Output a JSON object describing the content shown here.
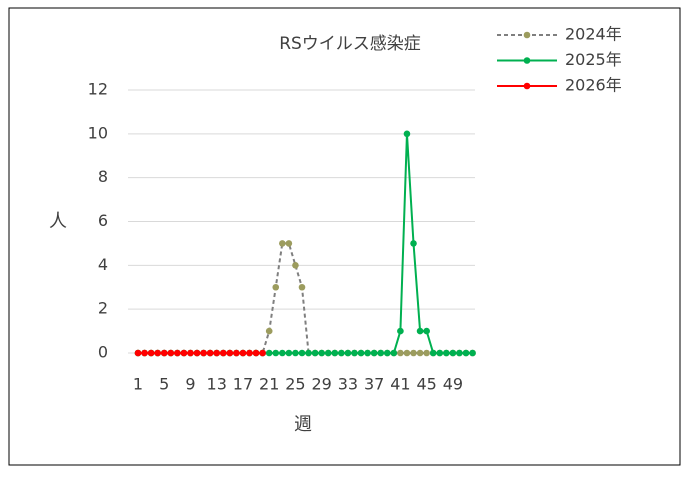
{
  "chart_data": {
    "type": "line",
    "title": "RSウイルス感染症",
    "x_label": "週",
    "y_label": "人",
    "categories": [
      1,
      null,
      null,
      null,
      5,
      null,
      null,
      null,
      9,
      null,
      null,
      null,
      13,
      null,
      null,
      null,
      17,
      null,
      null,
      null,
      21,
      null,
      null,
      null,
      25,
      null,
      null,
      null,
      29,
      null,
      null,
      null,
      33,
      null,
      null,
      null,
      37,
      null,
      null,
      null,
      41,
      null,
      null,
      null,
      45,
      null,
      null,
      null,
      49,
      null,
      null,
      null
    ],
    "series": [
      {
        "name": "2024年",
        "color": "#7f7f7f",
        "marker_color": "#9c9c5e",
        "dashed": true,
        "values": [
          0,
          0,
          0,
          0,
          0,
          0,
          0,
          0,
          0,
          0,
          0,
          0,
          0,
          0,
          0,
          0,
          0,
          0,
          0,
          0,
          1,
          3,
          5,
          5,
          4,
          3,
          0,
          0,
          0,
          0,
          0,
          0,
          0,
          0,
          0,
          0,
          0,
          0,
          0,
          0,
          0,
          0,
          0,
          0,
          0,
          0,
          0,
          0,
          0,
          0,
          0,
          0
        ]
      },
      {
        "name": "2025年",
        "color": "#00b050",
        "marker_color": "#00b050",
        "dashed": false,
        "values": [
          0,
          0,
          0,
          0,
          0,
          0,
          0,
          0,
          0,
          0,
          0,
          0,
          0,
          0,
          0,
          0,
          0,
          0,
          0,
          0,
          0,
          0,
          0,
          0,
          0,
          0,
          0,
          0,
          0,
          0,
          0,
          0,
          0,
          0,
          0,
          0,
          0,
          0,
          0,
          0,
          1,
          10,
          5,
          1,
          1,
          0,
          0,
          0,
          0,
          0,
          0,
          0
        ]
      },
      {
        "name": "2026年",
        "color": "#ff0000",
        "marker_color": "#ff0000",
        "dashed": false,
        "values": [
          0,
          0,
          0,
          0,
          0,
          0,
          0,
          0,
          0,
          0,
          0,
          0,
          0,
          0,
          0,
          0,
          0,
          0,
          0,
          0,
          null,
          null,
          null,
          null,
          null,
          null,
          null,
          null,
          null,
          null,
          null,
          null,
          null,
          null,
          null,
          null,
          null,
          null,
          null,
          null,
          null,
          null,
          null,
          null,
          null,
          null,
          null,
          null,
          null,
          null,
          null,
          null
        ]
      }
    ],
    "ylim": [
      0,
      12
    ],
    "yticks": [
      0,
      2,
      4,
      6,
      8,
      10,
      12
    ],
    "grid": true,
    "legend": "top-right"
  }
}
